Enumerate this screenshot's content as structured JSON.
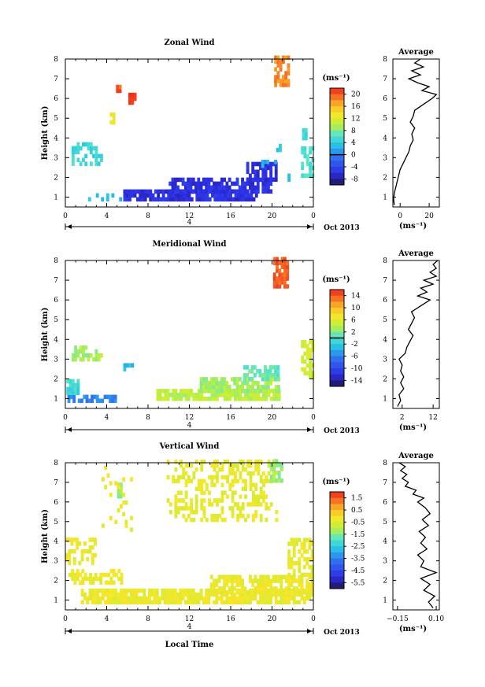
{
  "figure": {
    "xlabel": "Local Time"
  },
  "chart_data": [
    {
      "id": "zonal",
      "type": "heatmap",
      "title": "Zonal Wind",
      "ylabel": "Height (km)",
      "xlim": [
        0,
        24
      ],
      "ylim": [
        0.5,
        8
      ],
      "xticks": [
        "0",
        "4",
        "8",
        "12",
        "16",
        "20",
        "0"
      ],
      "yticks": [
        "1",
        "2",
        "3",
        "4",
        "5",
        "6",
        "7",
        "8"
      ],
      "date_axis": {
        "tick": "4",
        "label": "Oct 2013"
      },
      "colorbar": {
        "unit": "(ms⁻¹)",
        "vmin": -10,
        "vmax": 22,
        "ticks": [
          "20",
          "16",
          "12",
          "8",
          "4",
          "0",
          "-4",
          "-8"
        ],
        "marker": 0
      },
      "regions": [
        {
          "t": [
            5.6,
            18.6
          ],
          "h": [
            0.8,
            1.3
          ],
          "v": -6,
          "d": 0.9
        },
        {
          "t": [
            10,
            20
          ],
          "h": [
            1.2,
            1.9
          ],
          "v": -6,
          "d": 0.75
        },
        {
          "t": [
            17.5,
            20.3
          ],
          "h": [
            1.8,
            2.6
          ],
          "v": -6,
          "d": 0.8
        },
        {
          "t": [
            18.7,
            20.4
          ],
          "h": [
            2.5,
            2.8
          ],
          "v": 2,
          "d": 0.5
        },
        {
          "t": [
            2.2,
            5.8
          ],
          "h": [
            0.8,
            1.0
          ],
          "v": 3,
          "d": 0.4
        },
        {
          "t": [
            0.6,
            3.4
          ],
          "h": [
            2.6,
            3.6
          ],
          "v": 5,
          "d": 0.45
        },
        {
          "t": [
            22.8,
            24
          ],
          "h": [
            2.0,
            3.4
          ],
          "v": 6,
          "d": 0.5
        },
        {
          "t": [
            22.9,
            23.3
          ],
          "h": [
            3.9,
            4.3
          ],
          "v": 5,
          "d": 0.8
        },
        {
          "t": [
            20.4,
            20.9
          ],
          "h": [
            3.3,
            3.6
          ],
          "v": 4,
          "d": 0.7
        },
        {
          "t": [
            21.5,
            21.9
          ],
          "h": [
            1.8,
            2.1
          ],
          "v": 4,
          "d": 0.7
        },
        {
          "t": [
            4.3,
            4.6
          ],
          "h": [
            4.7,
            5.1
          ],
          "v": 13,
          "d": 0.8
        },
        {
          "t": [
            4.9,
            5.2
          ],
          "h": [
            6.3,
            6.6
          ],
          "v": 20,
          "d": 0.9
        },
        {
          "t": [
            6.1,
            6.8
          ],
          "h": [
            5.7,
            6.2
          ],
          "v": 21,
          "d": 0.9
        },
        {
          "t": [
            20.2,
            21.7
          ],
          "h": [
            6.6,
            8.0
          ],
          "v": 18,
          "d": 0.85
        }
      ],
      "profile": {
        "xlim": [
          -5,
          27
        ],
        "xticks": [
          {
            "v": 0,
            "t": "0"
          },
          {
            "v": 20,
            "t": "20"
          }
        ],
        "xlabel": "(ms⁻¹)",
        "title": "Average",
        "h": [
          0.6,
          0.9,
          1.2,
          1.5,
          1.8,
          2.1,
          2.4,
          2.7,
          3.0,
          3.3,
          3.6,
          3.9,
          4.2,
          4.5,
          4.8,
          5.1,
          5.4,
          5.7,
          6.0,
          6.2,
          6.4,
          6.6,
          6.8,
          7.0,
          7.2,
          7.4,
          7.6,
          7.8,
          8.0
        ],
        "v": [
          -4,
          -4.5,
          -4,
          -3,
          -2,
          -1,
          0,
          2,
          4,
          6,
          7,
          9,
          8,
          10,
          7,
          9,
          10,
          16,
          22,
          25,
          15,
          20,
          12,
          6,
          14,
          8,
          16,
          10,
          14
        ]
      }
    },
    {
      "id": "meridional",
      "type": "heatmap",
      "title": "Meridional Wind",
      "ylabel": "Height (km)",
      "xlim": [
        0,
        24
      ],
      "ylim": [
        0.5,
        8
      ],
      "xticks": [
        "0",
        "4",
        "8",
        "12",
        "16",
        "20",
        "0"
      ],
      "yticks": [
        "1",
        "2",
        "3",
        "4",
        "5",
        "6",
        "7",
        "8"
      ],
      "date_axis": {
        "tick": "4",
        "label": "Oct 2013"
      },
      "colorbar": {
        "unit": "(ms⁻¹)",
        "vmin": -16,
        "vmax": 16,
        "ticks": [
          "14",
          "10",
          "6",
          "2",
          "-2",
          "-6",
          "-10",
          "-14"
        ],
        "marker": 0
      },
      "regions": [
        {
          "t": [
            8.8,
            20.6
          ],
          "h": [
            0.9,
            1.4
          ],
          "v": 4,
          "d": 0.85
        },
        {
          "t": [
            13,
            20.6
          ],
          "h": [
            1.3,
            2.0
          ],
          "v": 3,
          "d": 0.75
        },
        {
          "t": [
            17.2,
            20.6
          ],
          "h": [
            1.9,
            2.5
          ],
          "v": 1,
          "d": 0.7
        },
        {
          "t": [
            0.2,
            4.9
          ],
          "h": [
            0.8,
            1.1
          ],
          "v": -6,
          "d": 0.5
        },
        {
          "t": [
            0.1,
            1.2
          ],
          "h": [
            1.2,
            1.8
          ],
          "v": -1,
          "d": 0.75
        },
        {
          "t": [
            0.6,
            3.6
          ],
          "h": [
            2.9,
            3.6
          ],
          "v": 3,
          "d": 0.45
        },
        {
          "t": [
            5.6,
            6.4
          ],
          "h": [
            2.4,
            2.7
          ],
          "v": -3,
          "d": 0.5
        },
        {
          "t": [
            22.8,
            24
          ],
          "h": [
            2.0,
            3.8
          ],
          "v": 5,
          "d": 0.55
        },
        {
          "t": [
            20.1,
            21.6
          ],
          "h": [
            6.6,
            8.0
          ],
          "v": 14,
          "d": 0.85
        }
      ],
      "profile": {
        "xlim": [
          -1,
          14
        ],
        "xticks": [
          {
            "v": 2,
            "t": "2"
          },
          {
            "v": 12,
            "t": "12"
          }
        ],
        "xlabel": "(ms⁻¹)",
        "title": "Average",
        "h": [
          0.6,
          0.9,
          1.2,
          1.5,
          1.8,
          2.1,
          2.4,
          2.7,
          3.0,
          3.3,
          3.6,
          3.9,
          4.2,
          4.5,
          4.8,
          5.1,
          5.4,
          5.7,
          6.0,
          6.2,
          6.4,
          6.6,
          6.8,
          7.0,
          7.2,
          7.4,
          7.6,
          7.8,
          8.0
        ],
        "v": [
          0.5,
          1.5,
          1.0,
          2.5,
          1.5,
          2.5,
          1.5,
          2.0,
          1.0,
          3.0,
          3.5,
          4.5,
          5.5,
          4.0,
          5.0,
          6.0,
          5.0,
          8.0,
          11.0,
          7.0,
          10.0,
          8.0,
          12.0,
          9.0,
          13.0,
          11.0,
          13.0,
          12.0,
          13.5
        ]
      }
    },
    {
      "id": "vertical",
      "type": "heatmap",
      "title": "Vertical Wind",
      "ylabel": "Height (km)",
      "xlim": [
        0,
        24
      ],
      "ylim": [
        0.5,
        8
      ],
      "xticks": [
        "0",
        "4",
        "8",
        "12",
        "16",
        "20",
        "0"
      ],
      "yticks": [
        "1",
        "2",
        "3",
        "4",
        "5",
        "6",
        "7",
        "8"
      ],
      "date_axis": {
        "tick": "4",
        "label": "Oct 2013"
      },
      "colorbar": {
        "unit": "(ms⁻¹)",
        "vmin": -6.0,
        "vmax": 2.0,
        "ticks": [
          "1.5",
          "0.5",
          "-0.5",
          "-1.5",
          "-2.5",
          "-3.5",
          "-4.5",
          "-5.5"
        ],
        "marker": null
      },
      "regions": [
        {
          "t": [
            1.5,
            24
          ],
          "h": [
            0.8,
            1.4
          ],
          "v": -0.3,
          "d": 0.85
        },
        {
          "t": [
            14,
            24
          ],
          "h": [
            1.3,
            2.2
          ],
          "v": -0.3,
          "d": 0.75
        },
        {
          "t": [
            0.3,
            5.5
          ],
          "h": [
            1.8,
            2.4
          ],
          "v": -0.3,
          "d": 0.55
        },
        {
          "t": [
            0,
            3.0
          ],
          "h": [
            2.8,
            4.1
          ],
          "v": -0.3,
          "d": 0.4
        },
        {
          "t": [
            21.5,
            24
          ],
          "h": [
            2.2,
            4.1
          ],
          "v": -0.4,
          "d": 0.5
        },
        {
          "t": [
            9.8,
            20.5
          ],
          "h": [
            5.0,
            8.0
          ],
          "v": -0.4,
          "d": 0.35
        },
        {
          "t": [
            19.8,
            21.0
          ],
          "h": [
            7.0,
            8.0
          ],
          "v": -1.3,
          "d": 0.7
        },
        {
          "t": [
            5.0,
            5.4
          ],
          "h": [
            6.2,
            6.9
          ],
          "v": -1.3,
          "d": 0.7
        },
        {
          "t": [
            3.5,
            6.5
          ],
          "h": [
            4.5,
            8.0
          ],
          "v": -0.3,
          "d": 0.12
        }
      ],
      "profile": {
        "xlim": [
          -0.18,
          0.12
        ],
        "xticks": [
          {
            "v": -0.15,
            "t": "−0.15"
          },
          {
            "v": 0.1,
            "t": "0.10"
          }
        ],
        "xlabel": "(ms⁻¹)",
        "title": "Average",
        "h": [
          0.6,
          0.9,
          1.2,
          1.5,
          1.8,
          2.1,
          2.4,
          2.7,
          3.0,
          3.3,
          3.6,
          3.9,
          4.2,
          4.5,
          4.8,
          5.1,
          5.4,
          5.7,
          6.0,
          6.2,
          6.4,
          6.6,
          6.8,
          7.0,
          7.2,
          7.4,
          7.6,
          7.8,
          8.0
        ],
        "v": [
          0.08,
          0.05,
          0.09,
          0.02,
          0.06,
          0.0,
          0.1,
          0.0,
          0.02,
          -0.02,
          0.04,
          0.0,
          0.03,
          -0.01,
          0.05,
          0.01,
          0.06,
          0.03,
          -0.02,
          0.02,
          -0.05,
          -0.03,
          -0.1,
          -0.08,
          -0.12,
          -0.09,
          -0.13,
          -0.1,
          -0.14
        ]
      }
    }
  ]
}
